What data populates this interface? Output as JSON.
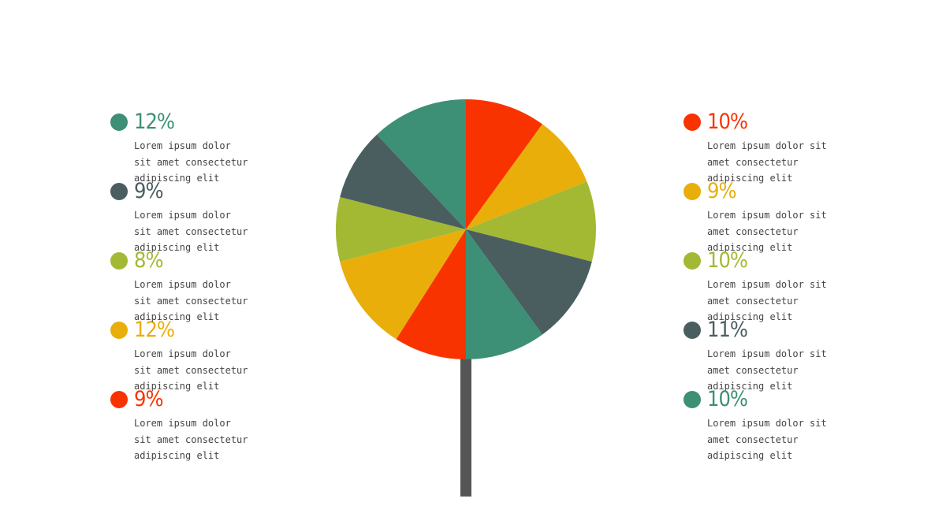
{
  "chart_data": {
    "type": "pie",
    "values": [
      10,
      9,
      10,
      11,
      10,
      9,
      12,
      8,
      9,
      12
    ],
    "value_labels": [
      "10%",
      "9%",
      "10%",
      "11%",
      "10%",
      "9%",
      "12%",
      "8%",
      "9%",
      "12%"
    ],
    "colors": [
      "#f93300",
      "#e9ae0a",
      "#a4b933",
      "#4a5e60",
      "#3d8f76",
      "#f93300",
      "#e9ae0a",
      "#a4b933",
      "#4a5e60",
      "#3d8f76"
    ],
    "descriptions": [
      "Lorem ipsum dolor sit amet consectetur adipiscing elit",
      "Lorem ipsum dolor sit amet consectetur adipiscing elit",
      "Lorem ipsum dolor sit amet consectetur adipiscing elit",
      "Lorem ipsum dolor sit amet consectetur adipiscing elit",
      "Lorem ipsum dolor sit amet consectetur adipiscing elit",
      "Lorem ipsum dolor sit amet consectetur adipiscing elit",
      "Lorem ipsum dolor sit amet consectetur adipiscing elit",
      "Lorem ipsum dolor sit amet consectetur adipiscing elit",
      "Lorem ipsum dolor sit amet consectetur adipiscing elit",
      "Lorem ipsum dolor sit amet consectetur adipiscing elit"
    ]
  }
}
